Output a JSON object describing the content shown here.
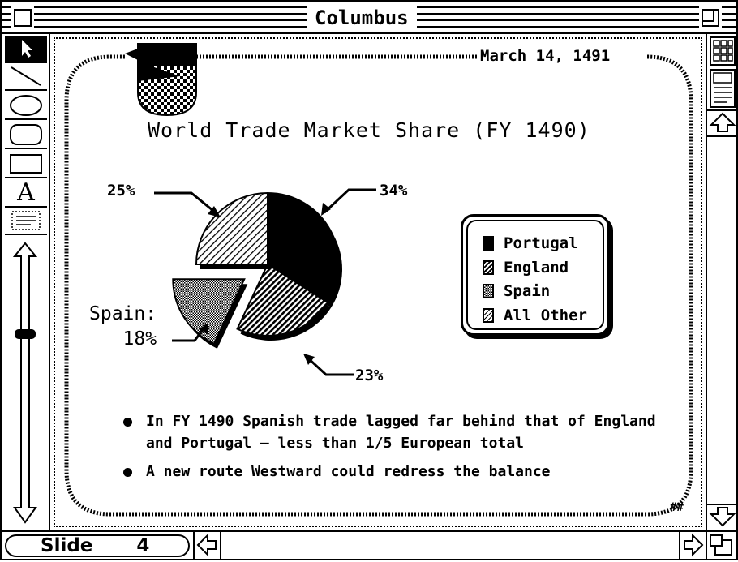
{
  "window": {
    "title": "Columbus"
  },
  "slide": {
    "date": "March 14, 1491",
    "title": "World Trade Market Share (FY 1490)",
    "spain_callout_line1": "Spain:",
    "bullets": [
      "In FY 1490 Spanish trade lagged far behind that of England and Portugal — less than 1/5 European total",
      "A new route Westward could redress the balance"
    ],
    "corner_mark": "##"
  },
  "status": {
    "slide_label": "Slide",
    "slide_number": "4"
  },
  "tools": [
    "arrow-icon",
    "line-icon",
    "oval-icon",
    "rounded-rect-icon",
    "rect-icon",
    "text-icon",
    "text-box-icon"
  ],
  "chart_data": {
    "type": "pie",
    "title": "World Trade Market Share (FY 1490)",
    "legend_position": "right",
    "slices": [
      {
        "name": "Portugal",
        "value": 34,
        "label": "34%",
        "pattern": "solid-black",
        "exploded": false
      },
      {
        "name": "England",
        "value": 23,
        "label": "23%",
        "pattern": "diagonal-dense",
        "exploded": false
      },
      {
        "name": "Spain",
        "value": 18,
        "label": "18%",
        "pattern": "crosshatch-gray",
        "exploded": true
      },
      {
        "name": "All Other",
        "value": 25,
        "label": "25%",
        "pattern": "diagonal-light",
        "exploded": false
      }
    ]
  }
}
